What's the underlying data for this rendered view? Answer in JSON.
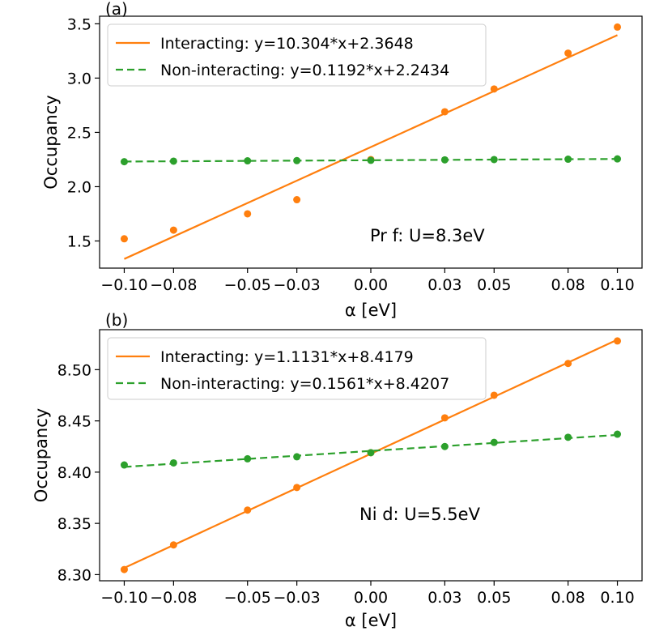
{
  "colors": {
    "interacting": "#ff7f0e",
    "non_interacting": "#2ca02c",
    "axis": "#000000",
    "legend_border": "#cccccc"
  },
  "chart_data": [
    {
      "type": "scatter",
      "panel_label": "(a)",
      "annotation": "Pr f: U=8.3eV",
      "xlabel": "α [eV]",
      "ylabel": "Occupancy",
      "xlim": [
        -0.11,
        0.11
      ],
      "ylim": [
        1.25,
        3.57
      ],
      "xticks": [
        -0.1,
        -0.08,
        -0.05,
        -0.03,
        0.0,
        0.03,
        0.05,
        0.08,
        0.1
      ],
      "xtick_labels": [
        "−0.10",
        "−0.08",
        "−0.05",
        "−0.03",
        "0.00",
        "0.03",
        "0.05",
        "0.08",
        "0.10"
      ],
      "yticks": [
        1.5,
        2.0,
        2.5,
        3.0,
        3.5
      ],
      "ytick_labels": [
        "1.5",
        "2.0",
        "2.5",
        "3.0",
        "3.5"
      ],
      "legend_position": "upper-left",
      "x": [
        -0.1,
        -0.08,
        -0.05,
        -0.03,
        0.0,
        0.03,
        0.05,
        0.08,
        0.1
      ],
      "series": [
        {
          "name": "Interacting",
          "legend": "Interacting: y=10.304*x+2.3648",
          "line_style": "solid",
          "slope": 10.304,
          "intercept": 2.3648,
          "values": [
            1.52,
            1.6,
            1.75,
            1.88,
            2.25,
            2.69,
            2.9,
            3.23,
            3.47
          ]
        },
        {
          "name": "Non-interacting",
          "legend": "Non-interacting: y=0.1192*x+2.2434",
          "line_style": "dashed",
          "slope": 0.1192,
          "intercept": 2.2434,
          "values": [
            2.23,
            2.235,
            2.238,
            2.24,
            2.243,
            2.247,
            2.25,
            2.253,
            2.256
          ]
        }
      ]
    },
    {
      "type": "scatter",
      "panel_label": "(b)",
      "annotation": "Ni d: U=5.5eV",
      "xlabel": "α [eV]",
      "ylabel": "Occupancy",
      "xlim": [
        -0.11,
        0.11
      ],
      "ylim": [
        8.294,
        8.539
      ],
      "xticks": [
        -0.1,
        -0.08,
        -0.05,
        -0.03,
        0.0,
        0.03,
        0.05,
        0.08,
        0.1
      ],
      "xtick_labels": [
        "−0.10",
        "−0.08",
        "−0.05",
        "−0.03",
        "0.00",
        "0.03",
        "0.05",
        "0.08",
        "0.10"
      ],
      "yticks": [
        8.3,
        8.35,
        8.4,
        8.45,
        8.5
      ],
      "ytick_labels": [
        "8.30",
        "8.35",
        "8.40",
        "8.45",
        "8.50"
      ],
      "legend_position": "upper-left",
      "x": [
        -0.1,
        -0.08,
        -0.05,
        -0.03,
        0.0,
        0.03,
        0.05,
        0.08,
        0.1
      ],
      "series": [
        {
          "name": "Interacting",
          "legend": "Interacting: y=1.1131*x+8.4179",
          "line_style": "solid",
          "slope": 1.1131,
          "intercept": 8.4179,
          "values": [
            8.305,
            8.329,
            8.363,
            8.385,
            8.419,
            8.453,
            8.475,
            8.506,
            8.528
          ]
        },
        {
          "name": "Non-interacting",
          "legend": "Non-interacting: y=0.1561*x+8.4207",
          "line_style": "dashed",
          "slope": 0.1561,
          "intercept": 8.4207,
          "values": [
            8.407,
            8.409,
            8.413,
            8.415,
            8.419,
            8.425,
            8.429,
            8.434,
            8.437
          ]
        }
      ]
    }
  ]
}
